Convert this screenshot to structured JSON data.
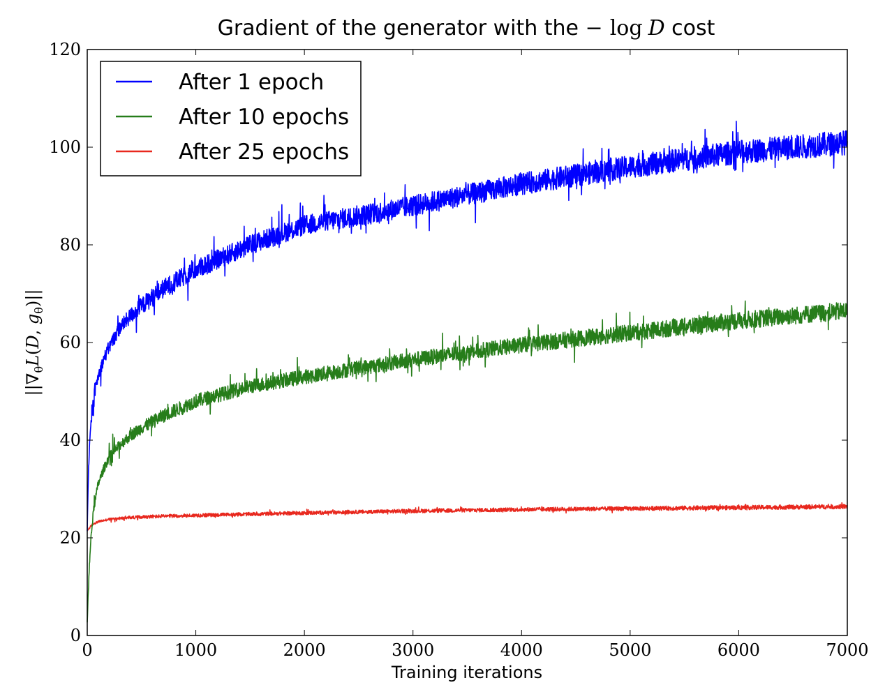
{
  "chart_data": {
    "type": "line",
    "title": {
      "prefix": "Gradient of the generator with the ",
      "math_minus": "−",
      "math_log": "log",
      "math_var": "D",
      "suffix": " cost"
    },
    "xlabel": "Training iterations",
    "ylabel": {
      "open": "||∇",
      "sub_theta": "θ",
      "L": "L",
      "paren_open": "(",
      "D": "D",
      "comma": ", ",
      "g": "g",
      "sub_theta2": "θ",
      "close": ")||"
    },
    "xlim": [
      0,
      7000
    ],
    "ylim": [
      0,
      120
    ],
    "xticks": [
      0,
      1000,
      2000,
      3000,
      4000,
      5000,
      6000,
      7000
    ],
    "yticks": [
      0,
      20,
      40,
      60,
      80,
      100,
      120
    ],
    "grid": false,
    "legend_position": "top-left",
    "series": [
      {
        "name": "After 1 epoch",
        "color": "#0000ff",
        "anchors_x": [
          0,
          10,
          30,
          60,
          100,
          150,
          200,
          300,
          400,
          500,
          700,
          1000,
          1500,
          2000,
          3000,
          4000,
          5000,
          6000,
          7000
        ],
        "anchors_y": [
          22,
          33,
          42,
          49,
          53,
          56.5,
          59,
          63,
          65.5,
          67.5,
          71,
          75,
          80,
          84,
          88,
          92.5,
          96,
          99,
          101
        ],
        "noise_amplitude": 2.2,
        "spike_amplitude": 4.5
      },
      {
        "name": "After 10 epochs",
        "color": "#267d1a",
        "anchors_x": [
          0,
          10,
          30,
          60,
          100,
          150,
          200,
          300,
          400,
          500,
          700,
          1000,
          1500,
          2000,
          3000,
          4000,
          5000,
          6000,
          7000
        ],
        "anchors_y": [
          3,
          9,
          19,
          26,
          31,
          34,
          36.5,
          39,
          41,
          42.5,
          45,
          48,
          51,
          53,
          56.5,
          59.5,
          62,
          64.5,
          66.5
        ],
        "noise_amplitude": 1.6,
        "spike_amplitude": 3.2
      },
      {
        "name": "After 25 epochs",
        "color": "#e8281e",
        "anchors_x": [
          0,
          20,
          50,
          100,
          200,
          300,
          500,
          1000,
          2000,
          3000,
          4000,
          5000,
          6000,
          7000
        ],
        "anchors_y": [
          21.5,
          22,
          22.8,
          23.3,
          23.8,
          24,
          24.3,
          24.6,
          25.1,
          25.5,
          25.8,
          26,
          26.2,
          26.4
        ],
        "noise_amplitude": 0.4,
        "spike_amplitude": 0.5
      }
    ]
  }
}
